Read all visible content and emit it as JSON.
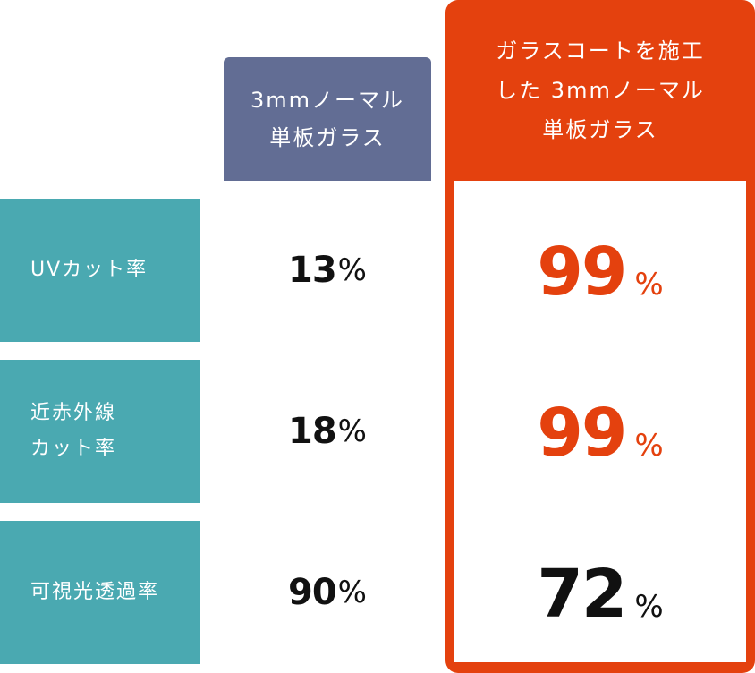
{
  "headers": {
    "normal": "3mmノーマル\n単板ガラス",
    "coated": "ガラスコートを施工\nした 3mmノーマル\n単板ガラス"
  },
  "rows": [
    {
      "label": "UVカット率",
      "normal_value": "13",
      "coated_value": "99",
      "unit": "%"
    },
    {
      "label": "近赤外線\nカット率",
      "normal_value": "18",
      "coated_value": "99",
      "unit": "%"
    },
    {
      "label": "可視光透過率",
      "normal_value": "90",
      "coated_value": "72",
      "unit": "%"
    }
  ],
  "colors": {
    "row_label_bg": "#4aa9b1",
    "normal_header_bg": "#626d94",
    "coated_accent": "#e4410e",
    "text_dark": "#111111"
  }
}
